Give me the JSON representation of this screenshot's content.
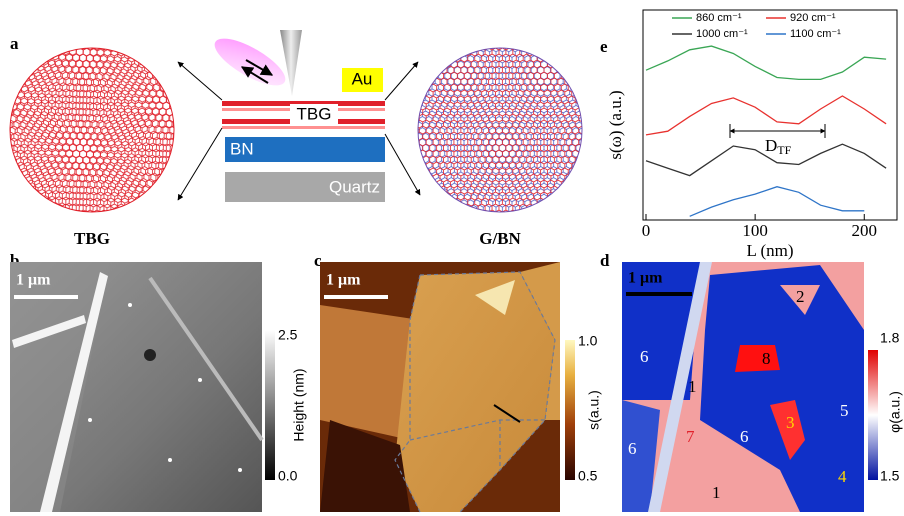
{
  "panels": {
    "a": {
      "label": "a",
      "au": "Au",
      "tbg_layer": "TBG",
      "bn": "BN",
      "quartz": "Quartz",
      "left_circle": "TBG",
      "right_circle": "G/BN"
    },
    "b": {
      "label": "b",
      "scale_bar": "1 μm",
      "colorbar_ticks": [
        "2.5",
        "0.0"
      ],
      "colorbar_label": "Height (nm)"
    },
    "c": {
      "label": "c",
      "scale_bar": "1 μm",
      "colorbar_ticks": [
        "1.0",
        "0.5"
      ],
      "colorbar_label": "s(a.u.)"
    },
    "d": {
      "label": "d",
      "scale_bar": "1 μm",
      "colorbar_ticks": [
        "1.8",
        "1.5"
      ],
      "colorbar_label": "φ(a.u.)",
      "region_labels": [
        "2",
        "6",
        "8",
        "1",
        "3",
        "5",
        "6",
        "7",
        "6",
        "4",
        "1"
      ]
    },
    "e": {
      "label": "e",
      "chart_data": {
        "type": "line",
        "xlabel": "L (nm)",
        "ylabel": "s(ω) (a.u.)",
        "annotation": {
          "main": "D",
          "sub": "TF"
        },
        "x": [
          0,
          20,
          40,
          60,
          80,
          100,
          120,
          140,
          160,
          180,
          200,
          220
        ],
        "xlim": [
          0,
          230
        ],
        "xticks": [
          0,
          100,
          200
        ],
        "ylim": [
          0,
          10
        ],
        "series": [
          {
            "name": "860 cm⁻¹",
            "color": "#3aa655",
            "values": [
              8.1,
              8.6,
              9.2,
              9.4,
              9.0,
              8.3,
              7.7,
              7.6,
              7.6,
              8.0,
              8.8,
              8.7
            ]
          },
          {
            "name": "920 cm⁻¹",
            "color": "#e8322f",
            "values": [
              4.6,
              4.8,
              5.6,
              6.3,
              6.6,
              6.1,
              5.3,
              5.2,
              6.0,
              6.7,
              6.0,
              5.2
            ]
          },
          {
            "name": "1000 cm⁻¹",
            "color": "#333333",
            "values": [
              3.2,
              2.8,
              2.4,
              3.2,
              4.0,
              3.8,
              3.1,
              3.0,
              3.6,
              4.1,
              3.6,
              2.8
            ]
          },
          {
            "name": "1100 cm⁻¹",
            "color": "#2f75c8",
            "values": [
              null,
              null,
              0.2,
              0.7,
              1.1,
              1.4,
              1.8,
              1.5,
              0.8,
              0.5,
              0.5,
              null
            ]
          }
        ]
      }
    }
  }
}
